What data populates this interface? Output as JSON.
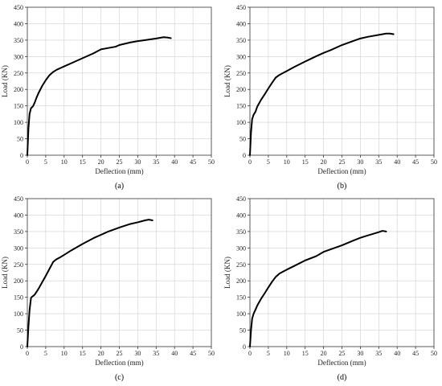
{
  "chart_data": [
    {
      "type": "line",
      "panel_label": "(a)",
      "xlabel": "Deflection (mm)",
      "ylabel": "Load (KN)",
      "xlim": [
        0,
        50
      ],
      "ylim": [
        0,
        450
      ],
      "xticks": [
        0,
        5,
        10,
        15,
        20,
        25,
        30,
        35,
        40,
        45,
        50
      ],
      "yticks": [
        0,
        50,
        100,
        150,
        200,
        250,
        300,
        350,
        400,
        450
      ],
      "grid": true,
      "series": [
        {
          "x": [
            0,
            0.3,
            0.6,
            1,
            1.3,
            1.6,
            2,
            2.5,
            3,
            4,
            5,
            6,
            7,
            8,
            9,
            10,
            12,
            15,
            18,
            20,
            22,
            24,
            25,
            28,
            30,
            32,
            35,
            37,
            38,
            39
          ],
          "y": [
            0,
            80,
            125,
            143,
            146,
            150,
            160,
            175,
            188,
            210,
            228,
            243,
            253,
            260,
            265,
            270,
            280,
            295,
            310,
            322,
            326,
            330,
            335,
            343,
            347,
            350,
            355,
            359,
            358,
            356
          ]
        }
      ]
    },
    {
      "type": "line",
      "panel_label": "(b)",
      "xlabel": "Deflection (mm)",
      "ylabel": "Load (KN)",
      "xlim": [
        0,
        50
      ],
      "ylim": [
        0,
        450
      ],
      "xticks": [
        0,
        5,
        10,
        15,
        20,
        25,
        30,
        35,
        40,
        45,
        50
      ],
      "yticks": [
        0,
        50,
        100,
        150,
        200,
        250,
        300,
        350,
        400,
        450
      ],
      "grid": true,
      "series": [
        {
          "x": [
            0,
            0.3,
            0.6,
            1,
            1.5,
            2,
            3,
            4,
            5,
            6,
            7,
            8,
            9,
            10,
            12,
            15,
            18,
            20,
            22,
            25,
            28,
            30,
            32,
            35,
            37,
            38,
            39
          ],
          "y": [
            0,
            70,
            110,
            123,
            132,
            148,
            168,
            185,
            203,
            220,
            236,
            244,
            250,
            256,
            268,
            285,
            301,
            311,
            320,
            335,
            347,
            355,
            360,
            366,
            370,
            370,
            368
          ]
        }
      ]
    },
    {
      "type": "line",
      "panel_label": "(c)",
      "xlabel": "Deflection (mm)",
      "ylabel": "Load (KN)",
      "xlim": [
        0,
        50
      ],
      "ylim": [
        0,
        450
      ],
      "xticks": [
        0,
        5,
        10,
        15,
        20,
        25,
        30,
        35,
        40,
        45,
        50
      ],
      "yticks": [
        0,
        50,
        100,
        150,
        200,
        250,
        300,
        350,
        400,
        450
      ],
      "grid": true,
      "series": [
        {
          "x": [
            0,
            0.3,
            0.6,
            1,
            1.3,
            1.6,
            2,
            3,
            4,
            5,
            6,
            7,
            7.5,
            8,
            9,
            10,
            12,
            15,
            18,
            20,
            22,
            25,
            28,
            30,
            32,
            33,
            34
          ],
          "y": [
            0,
            60,
            110,
            148,
            152,
            154,
            158,
            175,
            195,
            215,
            236,
            257,
            262,
            266,
            272,
            279,
            293,
            312,
            330,
            340,
            350,
            362,
            373,
            378,
            384,
            386,
            384
          ]
        }
      ]
    },
    {
      "type": "line",
      "panel_label": "(d)",
      "xlabel": "Deflection (mm)",
      "ylabel": "Load (KN)",
      "xlim": [
        0,
        50
      ],
      "ylim": [
        0,
        450
      ],
      "xticks": [
        0,
        5,
        10,
        15,
        20,
        25,
        30,
        35,
        40,
        45,
        50
      ],
      "yticks": [
        0,
        50,
        100,
        150,
        200,
        250,
        300,
        350,
        400,
        450
      ],
      "grid": true,
      "series": [
        {
          "x": [
            0,
            0.3,
            0.6,
            1,
            1.5,
            2,
            3,
            4,
            5,
            6,
            7,
            8,
            9,
            10,
            12,
            15,
            18,
            20,
            22,
            25,
            28,
            30,
            32,
            35,
            36,
            37
          ],
          "y": [
            0,
            50,
            85,
            100,
            112,
            125,
            145,
            162,
            180,
            197,
            212,
            222,
            228,
            234,
            245,
            262,
            275,
            288,
            296,
            308,
            322,
            331,
            338,
            348,
            352,
            350
          ]
        }
      ]
    }
  ]
}
